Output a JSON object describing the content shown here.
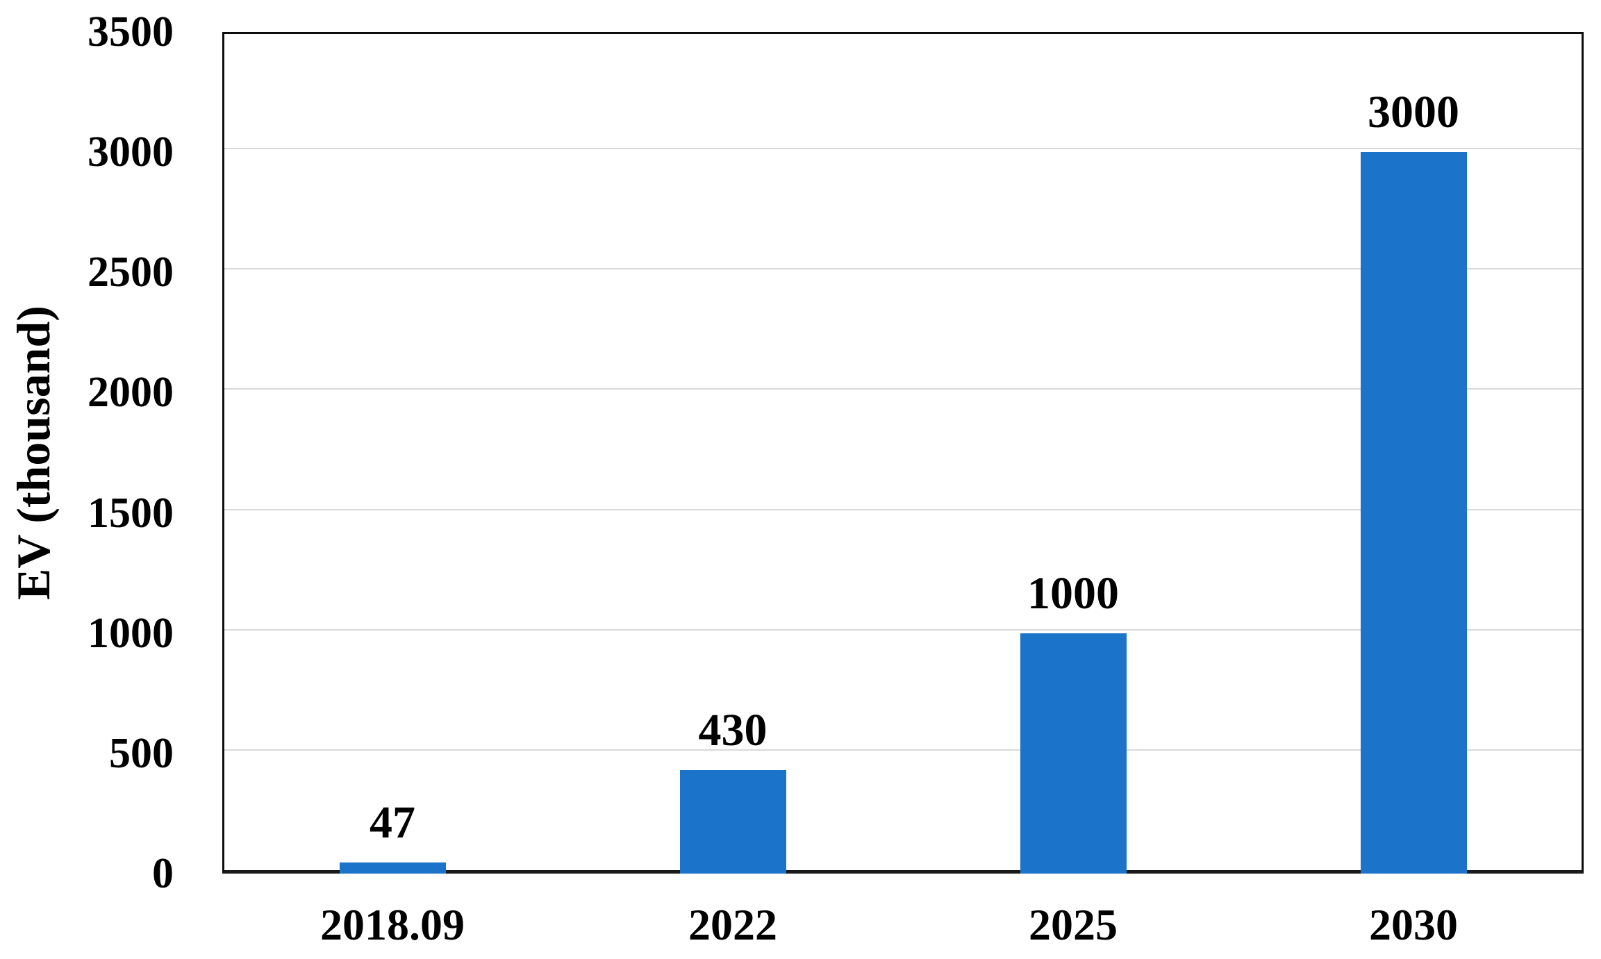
{
  "chart_data": {
    "type": "bar",
    "title": "",
    "xlabel": "",
    "ylabel": "EV (thousand)",
    "categories": [
      "2018.09",
      "2022",
      "2025",
      "2030"
    ],
    "values": [
      47,
      430,
      1000,
      3000
    ],
    "data_labels": [
      "47",
      "430",
      "1000",
      "3000"
    ],
    "ylim": [
      0,
      3500
    ],
    "yticks": [
      0,
      500,
      1000,
      1500,
      2000,
      2500,
      3000,
      3500
    ],
    "grid": true,
    "legend": false,
    "colors": {
      "bar": "#1b74ca",
      "gridline": "#d9d9d9",
      "plot_border": "#0d0d0d",
      "axis_line": "#1a1a1a",
      "text": "#000000",
      "background": "#ffffff"
    }
  }
}
